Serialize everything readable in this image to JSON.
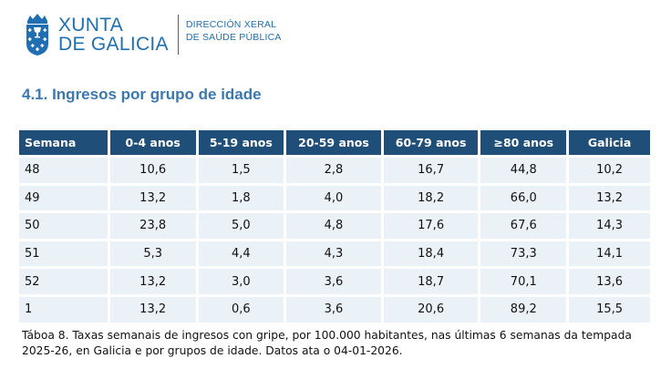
{
  "header": {
    "logo_line1": "XUNTA",
    "logo_line2": "DE GALICIA",
    "dept_line1": "DIRECCIÓN XERAL",
    "dept_line2": "DE SAÚDE PÚBLICA",
    "brand_color": "#1f6fb2",
    "crest_icon": "galicia-crest-icon"
  },
  "section": {
    "title": "4.1. Ingresos por grupo de idade"
  },
  "table": {
    "header_color": "#1f4e79",
    "row_color": "#eaf2f8",
    "columns": [
      "Semana",
      "0-4 anos",
      "5-19 anos",
      "20-59 anos",
      "60-79 anos",
      "≥80 anos",
      "Galicia"
    ],
    "rows": [
      [
        "48",
        "10,6",
        "1,5",
        "2,8",
        "16,7",
        "44,8",
        "10,2"
      ],
      [
        "49",
        "13,2",
        "1,8",
        "4,0",
        "18,2",
        "66,0",
        "13,2"
      ],
      [
        "50",
        "23,8",
        "5,0",
        "4,8",
        "17,6",
        "67,6",
        "14,3"
      ],
      [
        "51",
        "5,3",
        "4,4",
        "4,3",
        "18,4",
        "73,3",
        "14,1"
      ],
      [
        "52",
        "13,2",
        "3,0",
        "3,6",
        "18,7",
        "70,1",
        "13,6"
      ],
      [
        "1",
        "13,2",
        "0,6",
        "3,6",
        "20,6",
        "89,2",
        "15,5"
      ]
    ]
  },
  "caption": "Táboa 8. Taxas semanais de ingresos con gripe, por 100.000 habitantes, nas últimas 6 semanas da tempada 2025-26, en Galicia e por grupos de idade. Datos ata o 04-01-2026."
}
